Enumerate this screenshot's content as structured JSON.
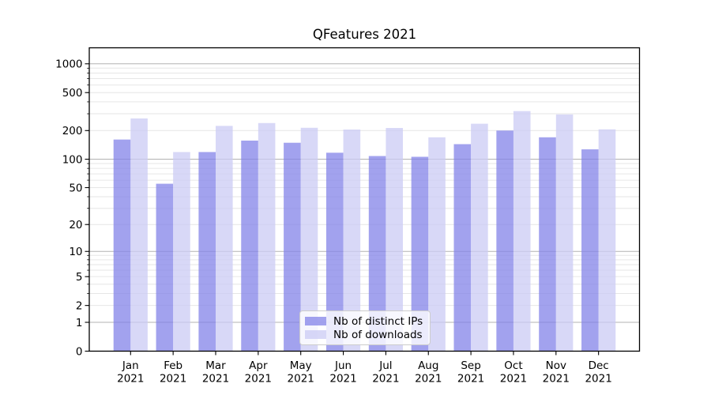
{
  "window": {
    "background": "#ffffff"
  },
  "chart_data": {
    "type": "bar",
    "title": "QFeatures 2021",
    "categories": [
      "Jan",
      "Feb",
      "Mar",
      "Apr",
      "May",
      "Jun",
      "Jul",
      "Aug",
      "Sep",
      "Oct",
      "Nov",
      "Dec"
    ],
    "x_tick_year": "2021",
    "series": [
      {
        "name": "Nb of distinct IPs",
        "color": "rgba(131,131,232,0.75)",
        "solid_color": "#a2a2ee",
        "values": [
          161,
          55,
          119,
          157,
          149,
          117,
          108,
          106,
          144,
          200,
          170,
          127
        ]
      },
      {
        "name": "Nb of downloads",
        "color": "rgba(203,203,244,0.75)",
        "solid_color": "#d8d8f7",
        "values": [
          268,
          119,
          224,
          240,
          214,
          205,
          213,
          170,
          236,
          320,
          295,
          206
        ]
      }
    ],
    "yscale": "log10(value+1)",
    "yticks": [
      0,
      1,
      2,
      5,
      10,
      20,
      50,
      100,
      200,
      500,
      1000
    ],
    "ylim": [
      0,
      1470
    ],
    "grid": "on",
    "legend_position": "lower center"
  },
  "colors": {
    "major_grid": "#b3b3b3",
    "minor_grid": "#e6e6e6",
    "spine": "#000000",
    "text": "#000000",
    "legend_border": "#cccccc",
    "legend_background": "rgba(255,255,255,0.8)"
  }
}
